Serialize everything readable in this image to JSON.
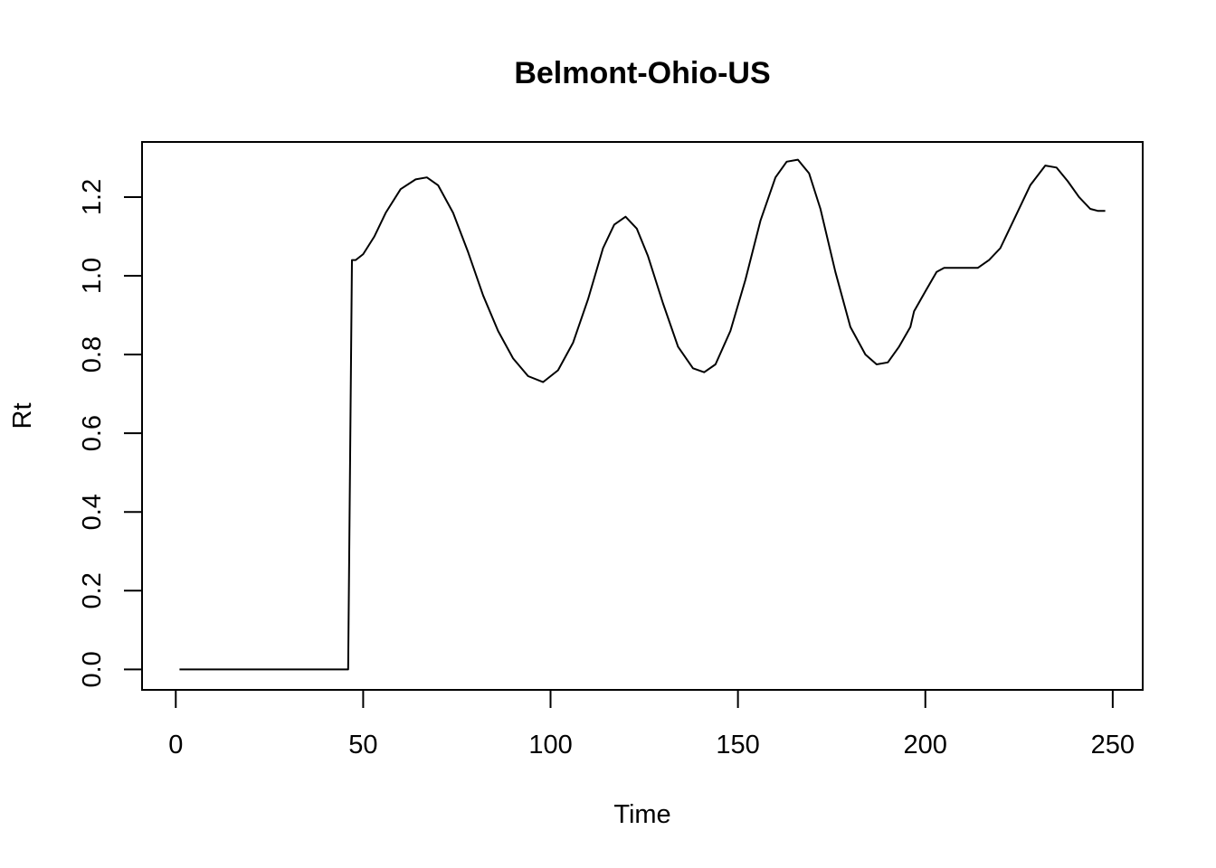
{
  "chart_data": {
    "type": "line",
    "title": "Belmont-Ohio-US",
    "xlabel": "Time",
    "ylabel": "Rt",
    "xlim": [
      -9,
      258
    ],
    "ylim": [
      -0.052,
      1.34
    ],
    "xticks": [
      0,
      50,
      100,
      150,
      200,
      250
    ],
    "xtick_labels": [
      "0",
      "50",
      "100",
      "150",
      "200",
      "250"
    ],
    "yticks": [
      0.0,
      0.2,
      0.4,
      0.6,
      0.8,
      1.0,
      1.2
    ],
    "ytick_labels": [
      "0.0",
      "0.2",
      "0.4",
      "0.6",
      "0.8",
      "1.0",
      "1.2"
    ],
    "grid": false,
    "series": [
      {
        "x": [
          1,
          46,
          47,
          48,
          50,
          53,
          56,
          60,
          64,
          67,
          70,
          74,
          78,
          82,
          86,
          90,
          94,
          98,
          102,
          106,
          110,
          114,
          117,
          120,
          123,
          126,
          130,
          134,
          138,
          141,
          144,
          148,
          152,
          156,
          160,
          163,
          166,
          169,
          172,
          176,
          180,
          184,
          187,
          190,
          193,
          196,
          197,
          200,
          203,
          205,
          208,
          211,
          214,
          217,
          220,
          224,
          228,
          232,
          235,
          238,
          241,
          244,
          246,
          248
        ],
        "y": [
          0,
          0,
          1.04,
          1.04,
          1.055,
          1.1,
          1.16,
          1.22,
          1.245,
          1.25,
          1.23,
          1.16,
          1.06,
          0.95,
          0.86,
          0.79,
          0.745,
          0.73,
          0.76,
          0.83,
          0.94,
          1.07,
          1.13,
          1.15,
          1.12,
          1.05,
          0.93,
          0.82,
          0.765,
          0.755,
          0.775,
          0.86,
          0.99,
          1.14,
          1.25,
          1.29,
          1.295,
          1.26,
          1.17,
          1.01,
          0.87,
          0.8,
          0.775,
          0.78,
          0.82,
          0.87,
          0.91,
          0.96,
          1.01,
          1.02,
          1.02,
          1.02,
          1.02,
          1.04,
          1.07,
          1.15,
          1.23,
          1.28,
          1.275,
          1.24,
          1.2,
          1.17,
          1.165,
          1.165
        ]
      }
    ]
  }
}
